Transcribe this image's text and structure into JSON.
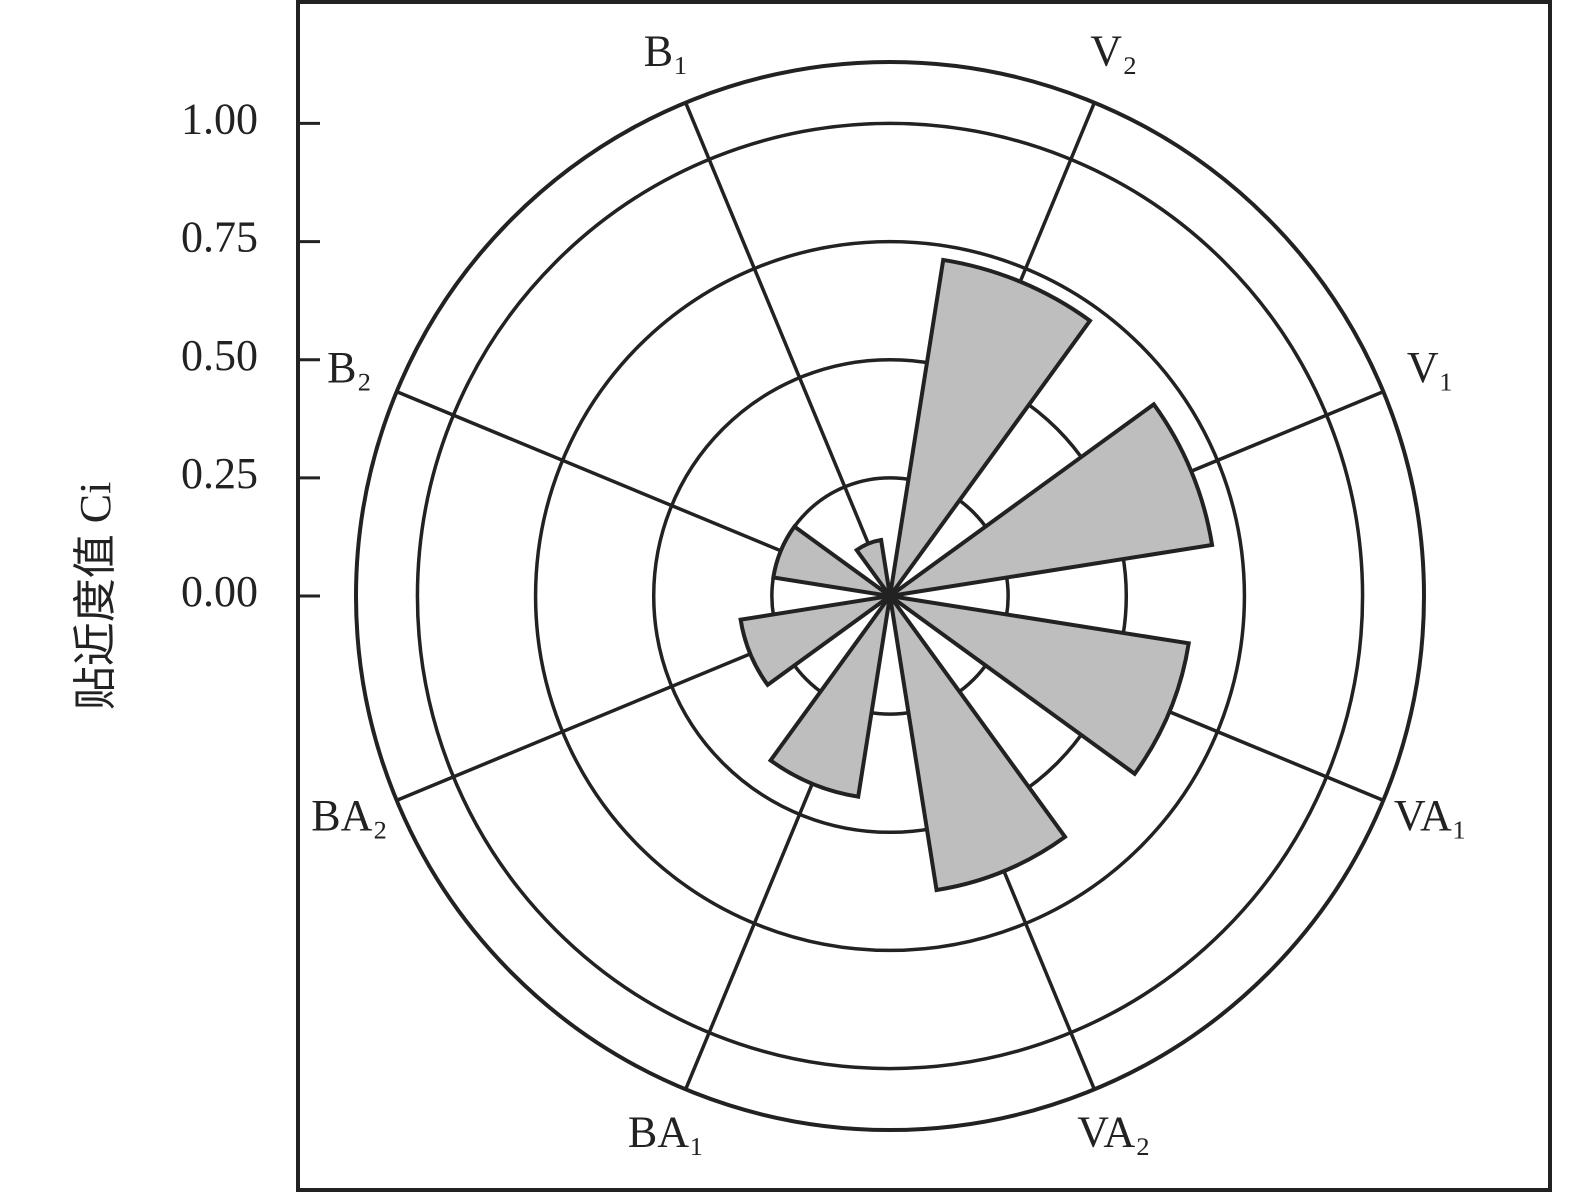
{
  "chart_data": {
    "type": "polar_bar",
    "y_label": "贴近度值 Ci",
    "categories": [
      "V₂",
      "V₁",
      "VA₁",
      "VA₂",
      "BA₁",
      "BA₂",
      "B₂",
      "B₁"
    ],
    "values": [
      0.72,
      0.69,
      0.64,
      0.63,
      0.43,
      0.32,
      0.25,
      0.12
    ],
    "color": "#bebebe",
    "ylim": [
      0,
      1.13
    ],
    "yticks": [
      {
        "value": 0,
        "label": "0.00"
      },
      {
        "value": 0.25,
        "label": "0.25"
      },
      {
        "value": 0.5,
        "label": "0.50"
      },
      {
        "value": 0.75,
        "label": "0.75"
      },
      {
        "value": 1,
        "label": "1.00"
      }
    ],
    "grid": true
  }
}
